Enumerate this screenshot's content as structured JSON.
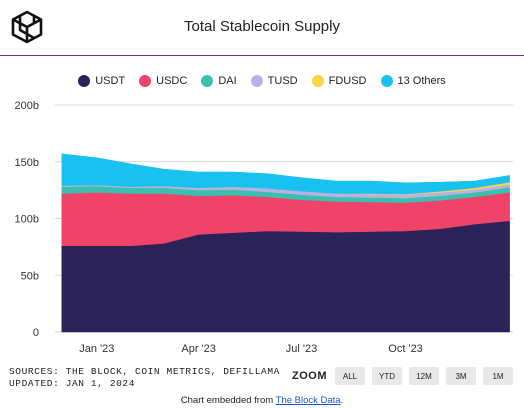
{
  "header": {
    "title": "Total Stablecoin Supply",
    "logo_icon": "block-cube-logo-icon"
  },
  "chart_data": {
    "type": "area",
    "stacked": true,
    "title": "Total Stablecoin Supply",
    "x": [
      "2022-12-01",
      "2023-01-01",
      "2023-02-01",
      "2023-03-01",
      "2023-04-01",
      "2023-05-01",
      "2023-06-01",
      "2023-07-01",
      "2023-08-01",
      "2023-09-01",
      "2023-10-01",
      "2023-11-01",
      "2023-12-01",
      "2024-01-01"
    ],
    "series": [
      {
        "name": "USDT",
        "color": "#2b2357",
        "values": [
          76,
          76,
          76,
          78,
          86,
          87.5,
          89,
          88.5,
          88,
          88.5,
          89,
          91,
          95,
          98
        ]
      },
      {
        "name": "USDC",
        "color": "#f0436a",
        "values": [
          46,
          47,
          46,
          44,
          34,
          33,
          30,
          28,
          27,
          26,
          25,
          25,
          24,
          25
        ]
      },
      {
        "name": "DAI",
        "color": "#3bbfae",
        "values": [
          6,
          5.5,
          5,
          5,
          5,
          5,
          4.5,
          4.5,
          4,
          4,
          4,
          4,
          4,
          4.5
        ]
      },
      {
        "name": "TUSD",
        "color": "#b9b0e6",
        "values": [
          1,
          1,
          1,
          1.5,
          2,
          2.5,
          3,
          3,
          3,
          3,
          3,
          3,
          2.5,
          2.5
        ]
      },
      {
        "name": "FDUSD",
        "color": "#f8d447",
        "values": [
          0,
          0,
          0,
          0,
          0,
          0,
          0,
          0,
          0,
          0.5,
          0.5,
          1,
          1.5,
          2
        ]
      },
      {
        "name": "13 Others",
        "color": "#18c1f0",
        "values": [
          28,
          24,
          20,
          15,
          14,
          13,
          13,
          12,
          11,
          11,
          10,
          8,
          6,
          6
        ]
      }
    ],
    "ylim": [
      0,
      200
    ],
    "y_ticks": [
      "0",
      "50b",
      "100b",
      "150b",
      "200b"
    ],
    "y_tick_values": [
      0,
      50,
      100,
      150,
      200
    ],
    "x_ticks": [
      "Jan '23",
      "Apr '23",
      "Jul '23",
      "Oct '23"
    ],
    "x_tick_values": [
      "2023-01-01",
      "2023-04-01",
      "2023-07-01",
      "2023-10-01"
    ],
    "grid": true,
    "legend_position": "top-center"
  },
  "footer": {
    "sources": "SOURCES: THE BLOCK, COIN METRICS, DEFILLAMA",
    "updated": "UPDATED: JAN 1, 2024",
    "zoom_label": "ZOOM",
    "zoom_buttons": [
      "ALL",
      "YTD",
      "12M",
      "3M",
      "1M"
    ],
    "embed_prefix": "Chart embedded from ",
    "embed_link": "The Block Data",
    "embed_suffix": "."
  }
}
